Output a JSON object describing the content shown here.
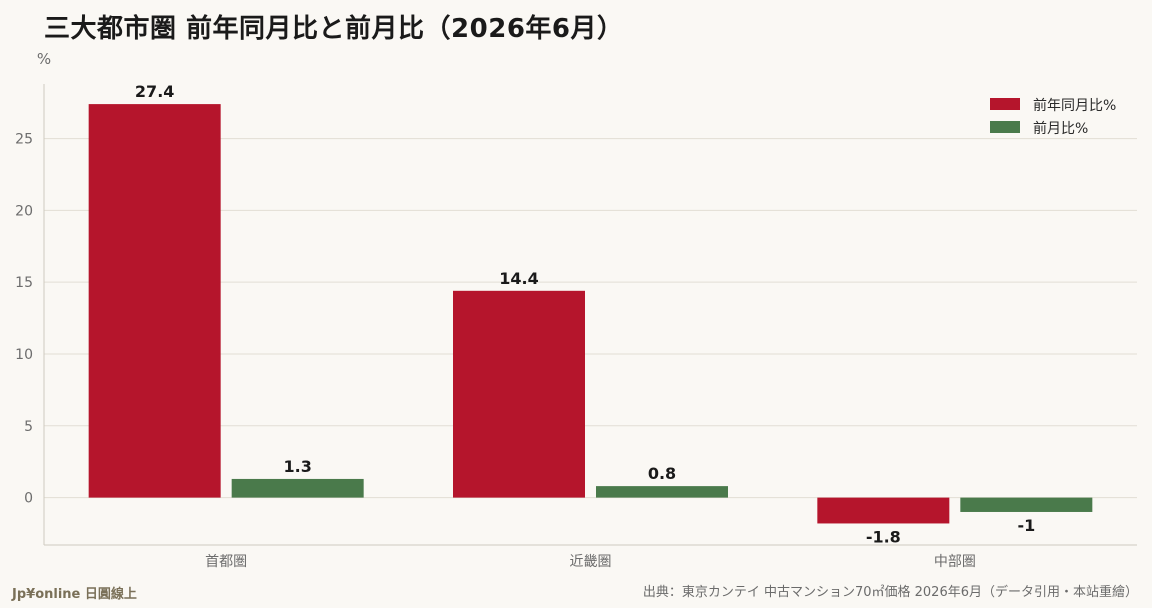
{
  "page": {
    "title": "三大都市圏 前年同月比と前月比（2026年6月）",
    "brand": "Jp¥online 日圓線上",
    "source": "出典：東京カンテイ 中古マンション70㎡価格 2026年6月（データ引用・本站重繪）"
  },
  "colors": {
    "yoy": "#b5152c",
    "mom": "#4a7a4b",
    "grid": "#e2ded5",
    "axis": "#cfcac0",
    "tick": "#6d6d6d"
  },
  "chart_data": {
    "type": "bar",
    "categories": [
      "首都圏",
      "近畿圏",
      "中部圏"
    ],
    "series": [
      {
        "name": "前年同月比%",
        "values": [
          27.4,
          14.4,
          -1.8
        ]
      },
      {
        "name": "前月比%",
        "values": [
          1.3,
          0.8,
          -1
        ]
      }
    ],
    "ylabel": "%",
    "ylim": [
      -3.3,
      28.8
    ],
    "yticks": [
      0,
      5,
      10,
      15,
      20,
      25
    ],
    "grid": true,
    "legend": "top-right"
  }
}
